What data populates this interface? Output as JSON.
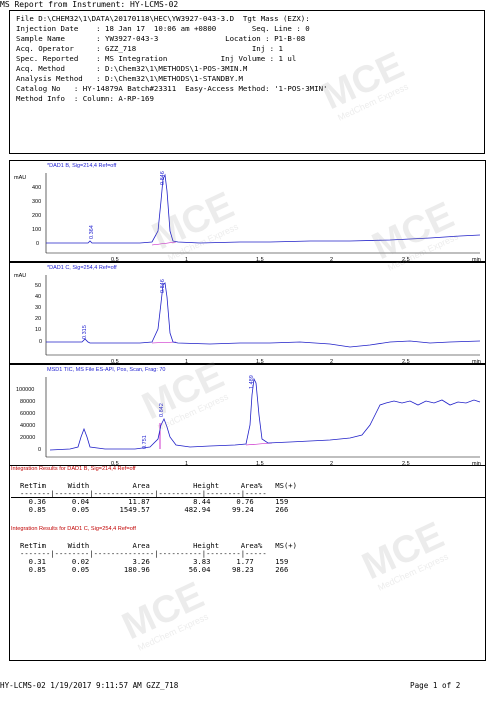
{
  "report_title": "MS Report from Instrument: HY-LCMS-02",
  "header": {
    "lines": [
      "File D:\\CHEM32\\1\\DATA\\20170118\\HEC\\YW3927-043-3.D  Tgt Mass (EZX):",
      "Injection Date    : 18 Jan 17  10:06 am +0800        Seq. Line : 0",
      "Sample Name       : YW3927-043-3               Location : P1-B-08",
      "Acq. Operator     : GZZ_718                          Inj : 1",
      "Spec. Reported    : MS Integration            Inj Volume : 1 ul",
      "Acq. Method       : D:\\Chem32\\1\\METHODS\\1-POS-3MIN.M",
      "Analysis Method   : D:\\Chem32\\1\\METHODS\\1-STANDBY.M",
      "Catalog No   : HY-14879A Batch#23311  Easy-Access Method: '1-POS-3MIN'",
      "Method Info  : Column: A-RP-169"
    ]
  },
  "chromatograms": [
    {
      "title": "*DAD1 B, Sig=214,4 Ref=off",
      "y_unit": "mAU",
      "x_unit": "min",
      "y_ticks": [
        "400",
        "300",
        "200",
        "100",
        "0"
      ],
      "x_ticks": [
        "0.5",
        "1",
        "1.5",
        "2",
        "2.5"
      ],
      "peak_labels": [
        "0.364",
        "0.846"
      ]
    },
    {
      "title": "*DAD1 C, Sig=254,4 Ref=off",
      "y_unit": "mAU",
      "x_unit": "min",
      "y_ticks": [
        "50",
        "40",
        "30",
        "20",
        "10",
        "0"
      ],
      "x_ticks": [
        "0.5",
        "1",
        "1.5",
        "2",
        "2.5"
      ],
      "peak_labels": [
        "0.315",
        "0.846"
      ]
    },
    {
      "title": "MSD1 TIC, MS File    ES-API, Pos, Scan, Frag: 70",
      "y_unit": "",
      "x_unit": "min",
      "y_ticks": [
        "100000",
        "80000",
        "60000",
        "40000",
        "20000",
        "0"
      ],
      "x_ticks": [
        "0.5",
        "1",
        "1.5",
        "2",
        "2.5"
      ],
      "peak_labels": [
        "0.751",
        "0.842",
        "1.489"
      ]
    }
  ],
  "integration": [
    {
      "title": "Integration Results for DAD1 B, Sig=214,4 Ref=off",
      "header": "RetTim     Width          Area          Height     Area%   MS(+)",
      "divider": "-------|--------|--------------|----------|--------|-----",
      "rows": [
        "  0.36      0.04         11.87          8.44      0.76     159",
        "  0.85      0.05       1549.57        482.94     99.24     266"
      ]
    },
    {
      "title": "Integration Results for DAD1 C, Sig=254,4 Ref=off",
      "header": "RetTim     Width          Area          Height     Area%   MS(+)",
      "divider": "-------|--------|--------------|----------|--------|-----",
      "rows": [
        "  0.31      0.02          3.26          3.83      1.77     159",
        "  0.85      0.05        180.96         56.04     98.23     266"
      ]
    }
  ],
  "watermark": {
    "brand": "MCE",
    "sub": "MedChem Express"
  },
  "footer": {
    "left": "HY-LCMS-02 1/19/2017 9:11:57 AM GZZ_718",
    "page": "Page    1 of 2"
  },
  "colors": {
    "trace": "#2020c8",
    "label": "#1c1cd0",
    "section_title": "#c00000",
    "baseline": "#c000c0"
  }
}
